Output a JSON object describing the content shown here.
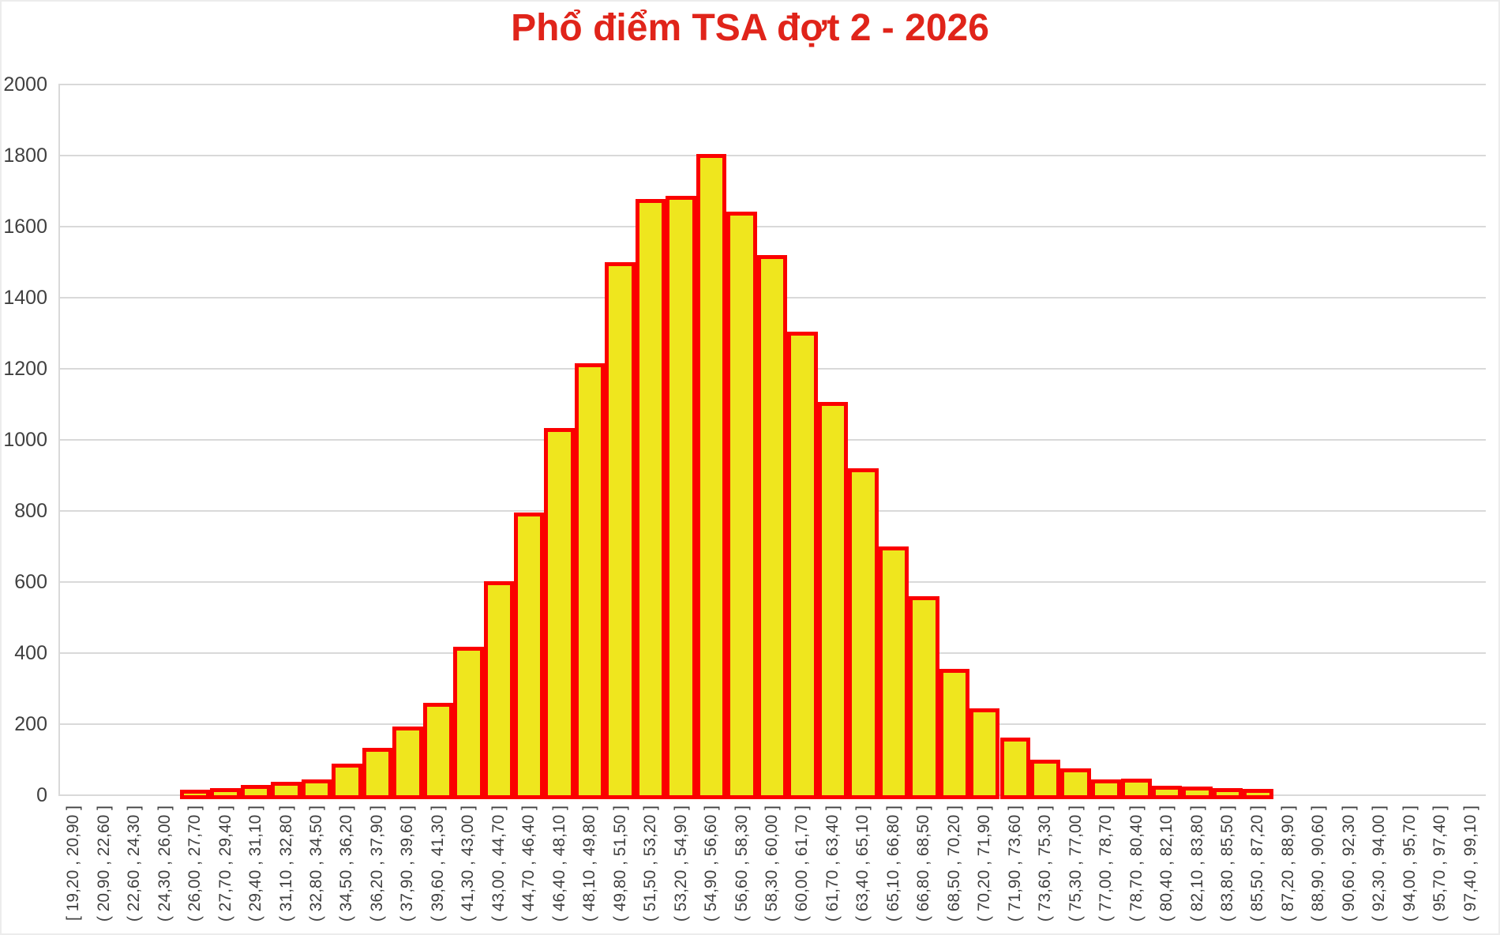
{
  "title": "Phổ điểm TSA đợt 2 - 2026",
  "chart_data": {
    "type": "bar",
    "title": "Phổ điểm TSA đợt 2 - 2026",
    "xlabel": "",
    "ylabel": "",
    "ylim": [
      0,
      2000
    ],
    "y_ticks": [
      0,
      200,
      400,
      600,
      800,
      1000,
      1200,
      1400,
      1600,
      1800,
      2000
    ],
    "grid": true,
    "legend": "none",
    "categories": [
      "[ 19,20 , 20,90 ]",
      "( 20,90 , 22,60 ]",
      "( 22,60 , 24,30 ]",
      "( 24,30 , 26,00 ]",
      "( 26,00 , 27,70 ]",
      "( 27,70 , 29,40 ]",
      "( 29,40 , 31,10 ]",
      "( 31,10 , 32,80 ]",
      "( 32,80 , 34,50 ]",
      "( 34,50 , 36,20 ]",
      "( 36,20 , 37,90 ]",
      "( 37,90 , 39,60 ]",
      "( 39,60 , 41,30 ]",
      "( 41,30 , 43,00 ]",
      "( 43,00 , 44,70 ]",
      "( 44,70 , 46,40 ]",
      "( 46,40 , 48,10 ]",
      "( 48,10 , 49,80 ]",
      "( 49,80 , 51,50 ]",
      "( 51,50 , 53,20 ]",
      "( 53,20 , 54,90 ]",
      "( 54,90 , 56,60 ]",
      "( 56,60 , 58,30 ]",
      "( 58,30 , 60,00 ]",
      "( 60,00 , 61,70 ]",
      "( 61,70 , 63,40 ]",
      "( 63,40 , 65,10 ]",
      "( 65,10 , 66,80 ]",
      "( 66,80 , 68,50 ]",
      "( 68,50 , 70,20 ]",
      "( 70,20 , 71,90 ]",
      "( 71,90 , 73,60 ]",
      "( 73,60 , 75,30 ]",
      "( 75,30 , 77,00 ]",
      "( 77,00 , 78,70 ]",
      "( 78,70 , 80,40 ]",
      "( 80,40 , 82,10 ]",
      "( 82,10 , 83,80 ]",
      "( 83,80 , 85,50 ]",
      "( 85,50 , 87,20 ]",
      "( 87,20 , 88,90 ]",
      "( 88,90 , 90,60 ]",
      "( 90,60 , 92,30 ]",
      "( 92,30 , 94,00 ]",
      "( 94,00 , 95,70 ]",
      "( 95,70 , 97,40 ]",
      "( 97,40 , 99,10 ]"
    ],
    "values": [
      0,
      0,
      0,
      0,
      5,
      10,
      17,
      27,
      33,
      78,
      122,
      182,
      250,
      407,
      592,
      785,
      1022,
      1204,
      1490,
      1667,
      1676,
      1793,
      1631,
      1510,
      1293,
      1096,
      910,
      689,
      549,
      344,
      233,
      151,
      89,
      65,
      33,
      35,
      15,
      14,
      10,
      6,
      0,
      0,
      0,
      0,
      0,
      0,
      0
    ],
    "colors": {
      "bar_fill": "#EFE61E",
      "bar_border": "#FB0000",
      "title_color": "#E0241A",
      "gridline_color": "#D9D9D9",
      "axis_line_color": "#D9D9D9",
      "tick_label_color": "#404040"
    }
  }
}
